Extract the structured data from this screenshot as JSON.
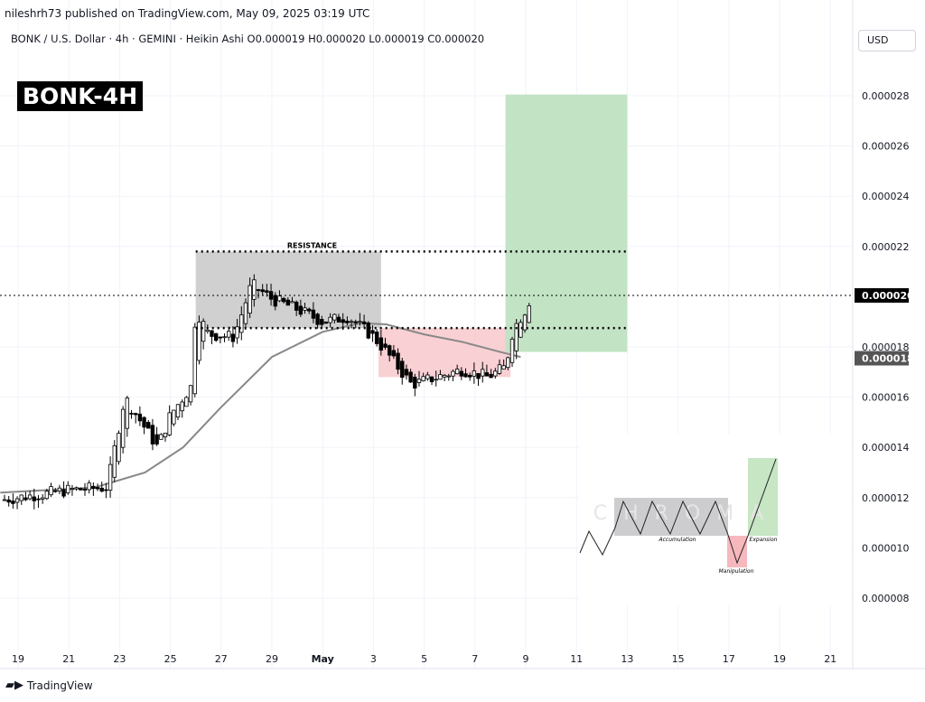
{
  "header": {
    "published": "nileshrh73 published on TradingView.com, May 09, 2025 03:19 UTC",
    "legend": "BONK / U.S. Dollar · 4h · GEMINI · Heikin Ashi  O0.000019  H0.000020  L0.000019  C0.000020",
    "currency": "USD"
  },
  "title_badge": "BONK-4H",
  "footer": {
    "brand": "TradingView"
  },
  "chart_data": {
    "type": "candlestick",
    "symbol": "BONK / U.S. Dollar",
    "interval": "4h",
    "exchange": "GEMINI",
    "style": "Heikin Ashi",
    "ylim": [
      6.8e-06,
      2.99e-05
    ],
    "y_ticks": [
      "0.000028",
      "0.000026",
      "0.000024",
      "0.000022",
      "0.000018",
      "0.000016",
      "0.000014",
      "0.000012",
      "0.000010",
      "0.000008"
    ],
    "x_ticks": [
      {
        "label": "19",
        "day": 19
      },
      {
        "label": "21",
        "day": 21
      },
      {
        "label": "23",
        "day": 23
      },
      {
        "label": "25",
        "day": 25
      },
      {
        "label": "27",
        "day": 27
      },
      {
        "label": "29",
        "day": 29
      },
      {
        "label": "May",
        "day": 31
      },
      {
        "label": "3",
        "day": 33
      },
      {
        "label": "5",
        "day": 35
      },
      {
        "label": "7",
        "day": 37
      },
      {
        "label": "9",
        "day": 39
      },
      {
        "label": "11",
        "day": 41
      },
      {
        "label": "13",
        "day": 43
      },
      {
        "label": "15",
        "day": 45
      },
      {
        "label": "17",
        "day": 47
      },
      {
        "label": "19",
        "day": 49
      },
      {
        "label": "21",
        "day": 51
      }
    ],
    "price_path": [
      [
        18.3,
        11.9
      ],
      [
        21,
        12.3
      ],
      [
        22.5,
        12.4
      ],
      [
        23.2,
        16.0
      ],
      [
        24.5,
        14.0
      ],
      [
        25,
        15.3
      ],
      [
        25.8,
        16.4
      ],
      [
        26,
        19.5
      ],
      [
        26.5,
        18.5
      ],
      [
        27.5,
        18.4
      ],
      [
        28.2,
        20.5
      ],
      [
        29,
        19.9
      ],
      [
        30,
        19.5
      ],
      [
        31,
        19.0
      ],
      [
        32,
        19.2
      ],
      [
        33,
        18.4
      ],
      [
        33.5,
        17.8
      ],
      [
        34.5,
        16.5
      ],
      [
        35.5,
        16.8
      ],
      [
        36.5,
        17.1
      ],
      [
        37.5,
        16.8
      ],
      [
        38.2,
        17.2
      ],
      [
        38.5,
        18.7
      ],
      [
        39,
        19.5
      ],
      [
        39.2,
        20.0
      ]
    ],
    "moving_average": [
      [
        18.3,
        12.2
      ],
      [
        22,
        12.4
      ],
      [
        24,
        13.0
      ],
      [
        25.5,
        14.0
      ],
      [
        27,
        15.6
      ],
      [
        29,
        17.6
      ],
      [
        31,
        18.6
      ],
      [
        32.5,
        18.95
      ],
      [
        33.5,
        18.9
      ],
      [
        35,
        18.5
      ],
      [
        36.5,
        18.2
      ],
      [
        38,
        17.8
      ],
      [
        38.8,
        17.6
      ]
    ],
    "current_price": "0.000020",
    "marked_price": "0.000018",
    "zones": [
      {
        "name": "accumulation",
        "from_day": 26,
        "to_day": 33.3,
        "low": 18.75,
        "high": 21.8,
        "color": "#c8c8c8"
      },
      {
        "name": "manipulation",
        "from_day": 33.2,
        "to_day": 38.4,
        "low": 16.8,
        "high": 18.75,
        "color": "#f8c8cc"
      },
      {
        "name": "expansion",
        "from_day": 38.2,
        "to_day": 43,
        "low": 17.8,
        "high": 28.05,
        "color": "#bfe3c2"
      }
    ],
    "levels": [
      {
        "label": "RESISTANCE",
        "price": 21.8
      },
      {
        "label": "",
        "price": 18.75
      }
    ],
    "inset": {
      "labels": [
        "Accumulation",
        "Manipulation",
        "Expansion"
      ],
      "watermark": "CHROMA"
    }
  }
}
